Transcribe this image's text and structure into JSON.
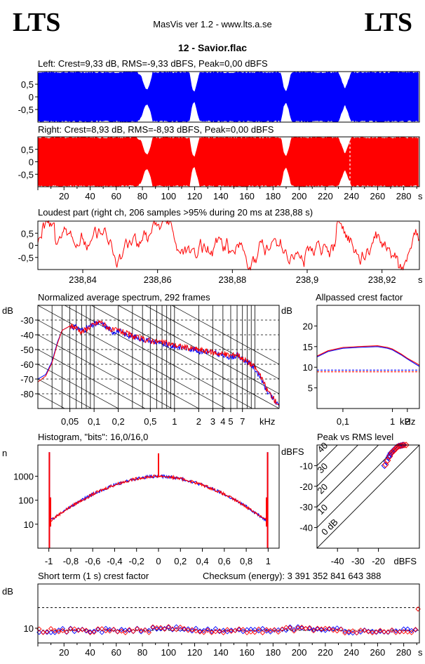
{
  "header": {
    "logo_left": "LTS",
    "logo_right": "LTS",
    "app_title": "MasVis ver 1.2 - www.lts.a.se",
    "file_name": "12 - Savior.flac"
  },
  "colors": {
    "left": "#0000ff",
    "right": "#ff0000",
    "axis": "#000000"
  },
  "chart_data": [
    {
      "id": "left",
      "type": "area",
      "title": "Left: Crest=9,33 dB, RMS=-9,33 dBFS, Peak=0,00 dBFS",
      "y_ticks": [
        "0,5",
        "0",
        "-0,5"
      ],
      "ylim": [
        -1,
        1
      ],
      "xlim": [
        0,
        292
      ],
      "envelope": {
        "t": [
          0,
          76,
          79,
          82,
          84,
          86,
          88,
          116,
          118,
          120,
          122,
          124,
          186,
          188,
          190,
          192,
          194,
          230,
          235,
          240,
          292
        ],
        "amp": [
          1,
          1,
          0.85,
          0.35,
          0.3,
          0.55,
          1,
          1,
          0.3,
          0.2,
          0.6,
          1,
          1,
          0.4,
          0.2,
          0.5,
          1,
          1,
          0.3,
          1,
          1
        ]
      }
    },
    {
      "id": "right",
      "type": "area",
      "title": "Right: Crest=8,93 dB, RMS=-8,93 dBFS, Peak=0,00 dBFS",
      "y_ticks": [
        "0,5",
        "0",
        "-0,5"
      ],
      "ylim": [
        -1,
        1
      ],
      "xlim": [
        0,
        292
      ],
      "marker_x": 238.88,
      "x_ticks": [
        "20",
        "40",
        "60",
        "80",
        "100",
        "120",
        "140",
        "160",
        "180",
        "200",
        "220",
        "240",
        "260",
        "280"
      ],
      "x_unit": "s"
    },
    {
      "id": "loudest",
      "type": "line",
      "title": "Loudest part (right ch, 206 samples >95% during 20 ms at 238,88 s)",
      "y_ticks": [
        "0,5",
        "0",
        "-0,5"
      ],
      "ylim": [
        -1,
        1
      ],
      "xlim": [
        238.828,
        238.93
      ],
      "x_ticks": [
        "238,84",
        "238,86",
        "238,88",
        "238,9",
        "238,92"
      ],
      "x_tick_values": [
        238.84,
        238.86,
        238.88,
        238.9,
        238.92
      ],
      "x_unit": "s"
    },
    {
      "id": "spectrum",
      "type": "line",
      "title": "Normalized average spectrum, 292 frames",
      "ylabel": "dB",
      "y_ticks": [
        "-30",
        "-40",
        "-50",
        "-60",
        "-70",
        "-80"
      ],
      "y_tick_values": [
        -30,
        -40,
        -50,
        -60,
        -70,
        -80
      ],
      "ylim": [
        -90,
        -20
      ],
      "x_ticks": [
        "0,05",
        "0,1",
        "0,2",
        "0,5",
        "1",
        "2",
        "3",
        "4",
        "5",
        "7"
      ],
      "x_tick_values": [
        0.05,
        0.1,
        0.2,
        0.5,
        1,
        2,
        3,
        4,
        5,
        7
      ],
      "x_unit": "kHz",
      "x_scale": "log",
      "xlim": [
        0.02,
        20
      ],
      "series": [
        {
          "color": "#0000ff",
          "x": [
            0.02,
            0.025,
            0.03,
            0.035,
            0.04,
            0.05,
            0.06,
            0.07,
            0.08,
            0.1,
            0.12,
            0.14,
            0.17,
            0.2,
            0.25,
            0.3,
            0.4,
            0.5,
            0.7,
            1,
            1.5,
            2,
            3,
            4,
            5,
            6,
            7,
            8,
            10,
            12,
            14,
            16,
            18,
            20
          ],
          "y": [
            -70,
            -67,
            -58,
            -45,
            -37,
            -34,
            -35,
            -37,
            -36,
            -33,
            -32,
            -34,
            -38,
            -37,
            -40,
            -41,
            -43,
            -44,
            -46,
            -48,
            -49,
            -51,
            -52,
            -54,
            -55,
            -54,
            -57,
            -58,
            -63,
            -70,
            -78,
            -82,
            -86,
            -88
          ]
        },
        {
          "color": "#ff0000",
          "x": [
            0.02,
            0.025,
            0.03,
            0.035,
            0.04,
            0.05,
            0.06,
            0.07,
            0.08,
            0.1,
            0.12,
            0.14,
            0.17,
            0.2,
            0.25,
            0.3,
            0.4,
            0.5,
            0.7,
            1,
            1.5,
            2,
            3,
            4,
            5,
            6,
            7,
            8,
            10,
            12,
            14,
            16,
            18,
            20
          ],
          "y": [
            -72,
            -68,
            -59,
            -46,
            -37,
            -34,
            -35,
            -38,
            -36,
            -33,
            -31,
            -34,
            -37,
            -37,
            -39,
            -41,
            -43,
            -44,
            -45,
            -47,
            -49,
            -50,
            -52,
            -53,
            -54,
            -53,
            -56,
            -58,
            -62,
            -69,
            -77,
            -81,
            -85,
            -87
          ]
        }
      ]
    },
    {
      "id": "allpassed",
      "type": "line",
      "title": "Allpassed crest factor",
      "ylabel": "dB",
      "y_ticks": [
        "20",
        "15",
        "10",
        "5"
      ],
      "y_tick_values": [
        20,
        15,
        10,
        5
      ],
      "ylim": [
        0,
        25
      ],
      "x_ticks": [
        "0,1",
        "1",
        "2"
      ],
      "x_tick_values": [
        0.1,
        1,
        2
      ],
      "x_unit": "kHz",
      "x_scale": "log",
      "xlim": [
        0.03,
        3.5
      ],
      "series": [
        {
          "color": "#0000ff",
          "x": [
            0.03,
            0.05,
            0.1,
            0.2,
            0.5,
            0.8,
            1,
            1.5,
            2,
            3,
            3.5
          ],
          "y": [
            12.5,
            13.8,
            14.6,
            14.8,
            15,
            14.6,
            14.2,
            13,
            12,
            10.7,
            10.2
          ]
        },
        {
          "color": "#ff0000",
          "x": [
            0.03,
            0.05,
            0.1,
            0.2,
            0.5,
            0.8,
            1,
            1.5,
            2,
            3,
            3.5
          ],
          "y": [
            12.7,
            14,
            14.8,
            15,
            15.2,
            14.8,
            14.4,
            13.2,
            12.2,
            11,
            10.5
          ]
        }
      ],
      "reference_lines": [
        {
          "color": "#0000ff",
          "y": 9.3
        },
        {
          "color": "#ff0000",
          "y": 8.9
        }
      ]
    },
    {
      "id": "histogram",
      "type": "line",
      "title": "Histogram, \"bits\": 16,0/16,0",
      "ylabel": "n",
      "y_scale": "log",
      "y_ticks": [
        "1000",
        "100",
        "10"
      ],
      "y_tick_values": [
        1000,
        100,
        10
      ],
      "ylim": [
        1,
        20000
      ],
      "x_ticks": [
        "-1",
        "-0,8",
        "-0,6",
        "-0,4",
        "-0,2",
        "0",
        "0,2",
        "0,4",
        "0,6",
        "0,8",
        "1"
      ],
      "x_tick_values": [
        -1,
        -0.8,
        -0.6,
        -0.4,
        -0.2,
        0,
        0.2,
        0.4,
        0.6,
        0.8,
        1
      ],
      "xlim": [
        -1.1,
        1.1
      ]
    },
    {
      "id": "peak_vs_rms",
      "type": "scatter",
      "title": "Peak vs RMS level",
      "ylabel": "dBFS",
      "xlabel": "dBFS",
      "y_ticks": [
        "-10",
        "-20",
        "-30",
        "-40"
      ],
      "y_tick_values": [
        -10,
        -20,
        -30,
        -40
      ],
      "x_ticks": [
        "-40",
        "-30",
        "-20"
      ],
      "x_tick_values": [
        -40,
        -30,
        -20
      ],
      "xlim": [
        -50,
        0
      ],
      "ylim": [
        -50,
        0
      ],
      "diagonal_labels": [
        "40",
        "30",
        "20",
        "10",
        "0 dB"
      ],
      "diagonal_offsets": [
        40,
        30,
        20,
        10,
        0
      ],
      "series": [
        {
          "color": "#0000ff",
          "x": [
            -17,
            -16,
            -15,
            -14,
            -13,
            -12,
            -11,
            -10,
            -9,
            -8,
            -14.5,
            -12.5,
            -10.5
          ],
          "y": [
            -10,
            -8,
            -6,
            -4,
            -3,
            -2,
            -1,
            -0.5,
            -0.3,
            0,
            -5,
            -2.5,
            -0.8
          ]
        },
        {
          "color": "#ff0000",
          "x": [
            -16.5,
            -15.5,
            -14.5,
            -13.5,
            -12.5,
            -11.5,
            -10.5,
            -9.5,
            -8.5,
            -7.5,
            -6.5,
            -13,
            -11
          ],
          "y": [
            -9.5,
            -7.5,
            -5.5,
            -3.8,
            -2.8,
            -1.8,
            -0.8,
            -0.4,
            -0.2,
            0,
            0,
            -3.2,
            -1.2
          ]
        }
      ]
    },
    {
      "id": "short_term_crest",
      "type": "scatter",
      "title": "Short term (1 s) crest factor",
      "checksum": "Checksum (energy):  3 391 352 841 643 388",
      "ylabel": "dB",
      "y_ticks": [
        "10"
      ],
      "y_tick_values": [
        10
      ],
      "ylim": [
        5,
        25
      ],
      "xlim": [
        0,
        292
      ],
      "x_ticks": [
        "20",
        "40",
        "60",
        "80",
        "100",
        "120",
        "140",
        "160",
        "180",
        "200",
        "220",
        "240",
        "260",
        "280"
      ],
      "x_unit": "s",
      "reference_lines": [
        {
          "color": "#000000",
          "y": 17
        },
        {
          "color": "#000000",
          "y": 9.3
        }
      ]
    }
  ]
}
